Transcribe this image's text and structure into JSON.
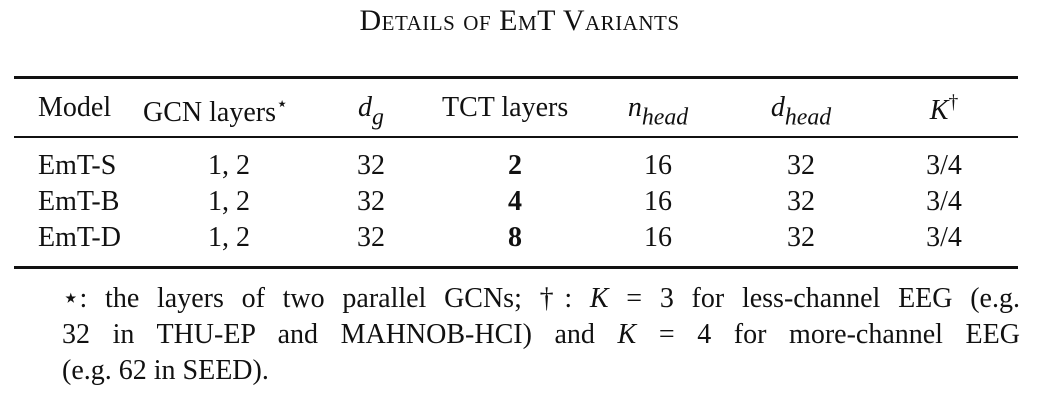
{
  "caption": "Details of EmT Variants",
  "table": {
    "headers": {
      "model": "Model",
      "gcn_layers": "GCN layers",
      "gcn_layers_mark": "⋆",
      "d_g": "d",
      "d_g_sub": "g",
      "tct_layers": "TCT layers",
      "n_head": "n",
      "n_head_sub": "head",
      "d_head": "d",
      "d_head_sub": "head",
      "k": "K",
      "k_mark": "†"
    },
    "rows": [
      {
        "model": "EmT-S",
        "gcn_layers": "1, 2",
        "d_g": "32",
        "tct_layers": "2",
        "n_head": "16",
        "d_head": "32",
        "k": "3/4"
      },
      {
        "model": "EmT-B",
        "gcn_layers": "1, 2",
        "d_g": "32",
        "tct_layers": "4",
        "n_head": "16",
        "d_head": "32",
        "k": "3/4"
      },
      {
        "model": "EmT-D",
        "gcn_layers": "1, 2",
        "d_g": "32",
        "tct_layers": "8",
        "n_head": "16",
        "d_head": "32",
        "k": "3/4"
      }
    ]
  },
  "footnote": {
    "line1_a": "⋆: the layers of two parallel GCNs; †: ",
    "line1_k": "K",
    "line1_b": " = 3 for less-channel EEG (e.g.",
    "line2_a": "32 in THU-EP and MAHNOB-HCI) and ",
    "line2_k": "K",
    "line2_b": " = 4 for more-channel EEG",
    "line3": "(e.g. 62 in SEED)."
  }
}
